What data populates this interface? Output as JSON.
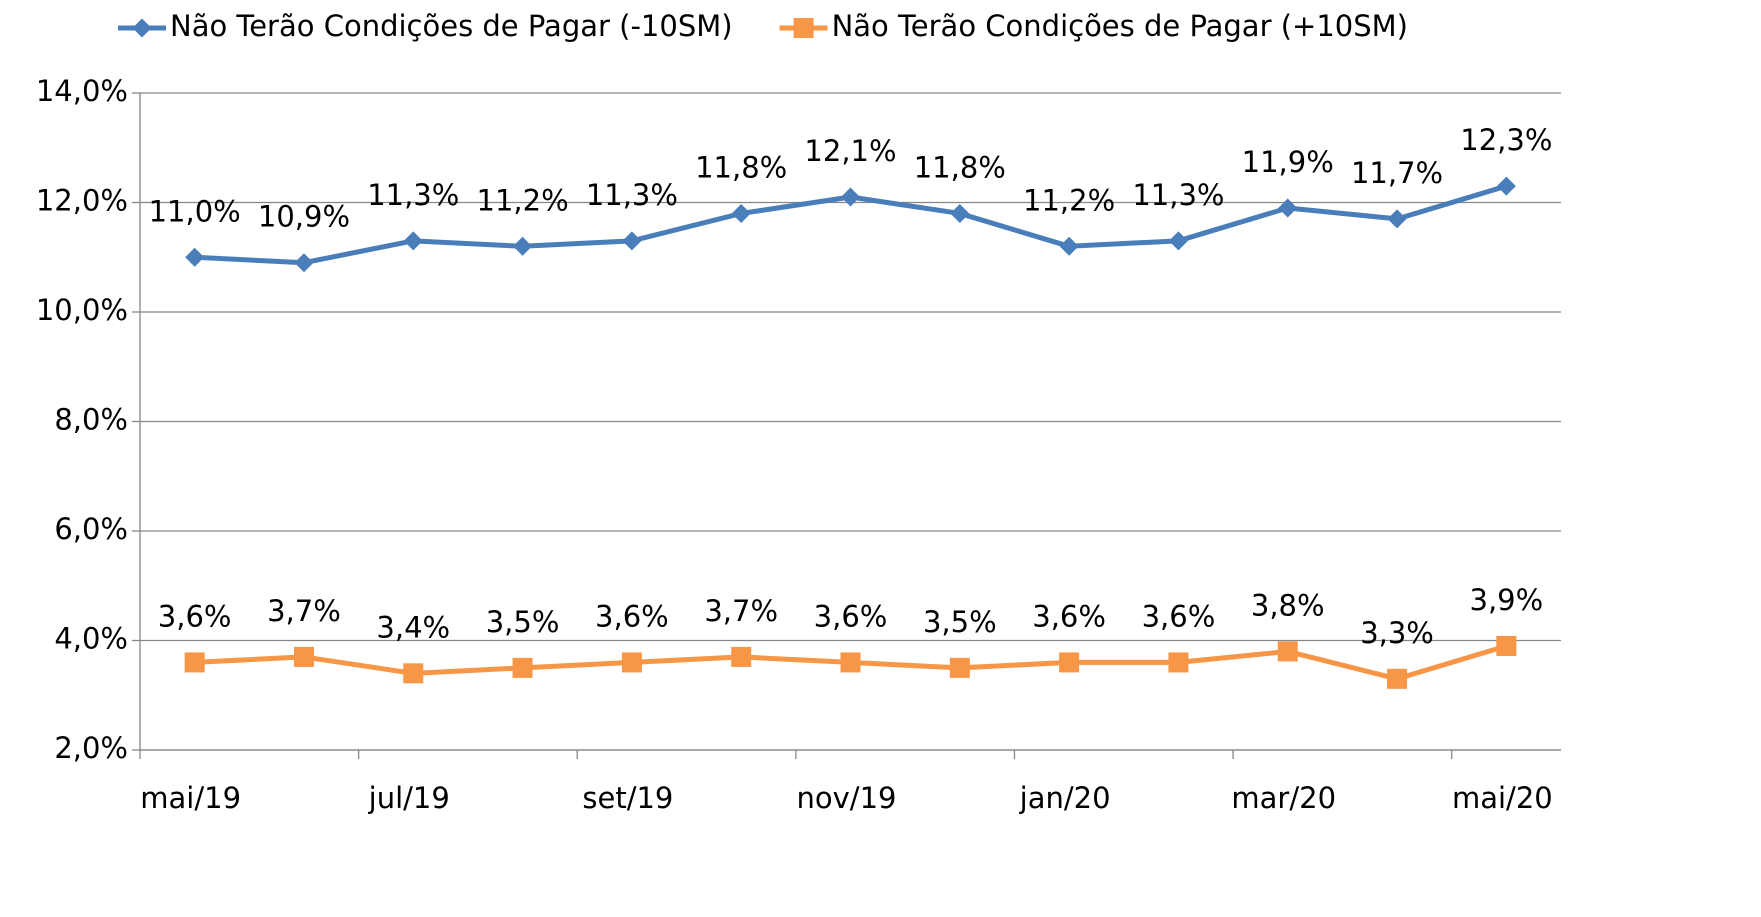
{
  "chart_data": {
    "type": "line",
    "categories": [
      "mai/19",
      null,
      "jul/19",
      null,
      "set/19",
      null,
      "nov/19",
      null,
      "jan/20",
      null,
      "mar/20",
      null,
      "mai/20"
    ],
    "series": [
      {
        "name": "Não Terão Condições de Pagar (-10SM)",
        "color": "#4a7ebb",
        "marker": "diamond",
        "values": [
          11.0,
          10.9,
          11.3,
          11.2,
          11.3,
          11.8,
          12.1,
          11.8,
          11.2,
          11.3,
          11.9,
          11.7,
          12.3
        ],
        "value_labels": [
          "11,0%",
          "10,9%",
          "11,3%",
          "11,2%",
          "11,3%",
          "11,8%",
          "12,1%",
          "11,8%",
          "11,2%",
          "11,3%",
          "11,9%",
          "11,7%",
          "12,3%"
        ]
      },
      {
        "name": "Não Terão Condições de Pagar (+10SM)",
        "color": "#f79646",
        "marker": "square",
        "values": [
          3.6,
          3.7,
          3.4,
          3.5,
          3.6,
          3.7,
          3.6,
          3.5,
          3.6,
          3.6,
          3.8,
          3.3,
          3.9
        ],
        "value_labels": [
          "3,6%",
          "3,7%",
          "3,4%",
          "3,5%",
          "3,6%",
          "3,7%",
          "3,6%",
          "3,5%",
          "3,6%",
          "3,6%",
          "3,8%",
          "3,3%",
          "3,9%"
        ]
      }
    ],
    "ylim": [
      2,
      14
    ],
    "yticks": [
      {
        "value": 2,
        "label": "2,0%"
      },
      {
        "value": 4,
        "label": "4,0%"
      },
      {
        "value": 6,
        "label": "6,0%"
      },
      {
        "value": 8,
        "label": "8,0%"
      },
      {
        "value": 10,
        "label": "10,0%"
      },
      {
        "value": 12,
        "label": "12,0%"
      },
      {
        "value": 14,
        "label": "14,0%"
      }
    ],
    "grid": true,
    "legend": "top"
  }
}
